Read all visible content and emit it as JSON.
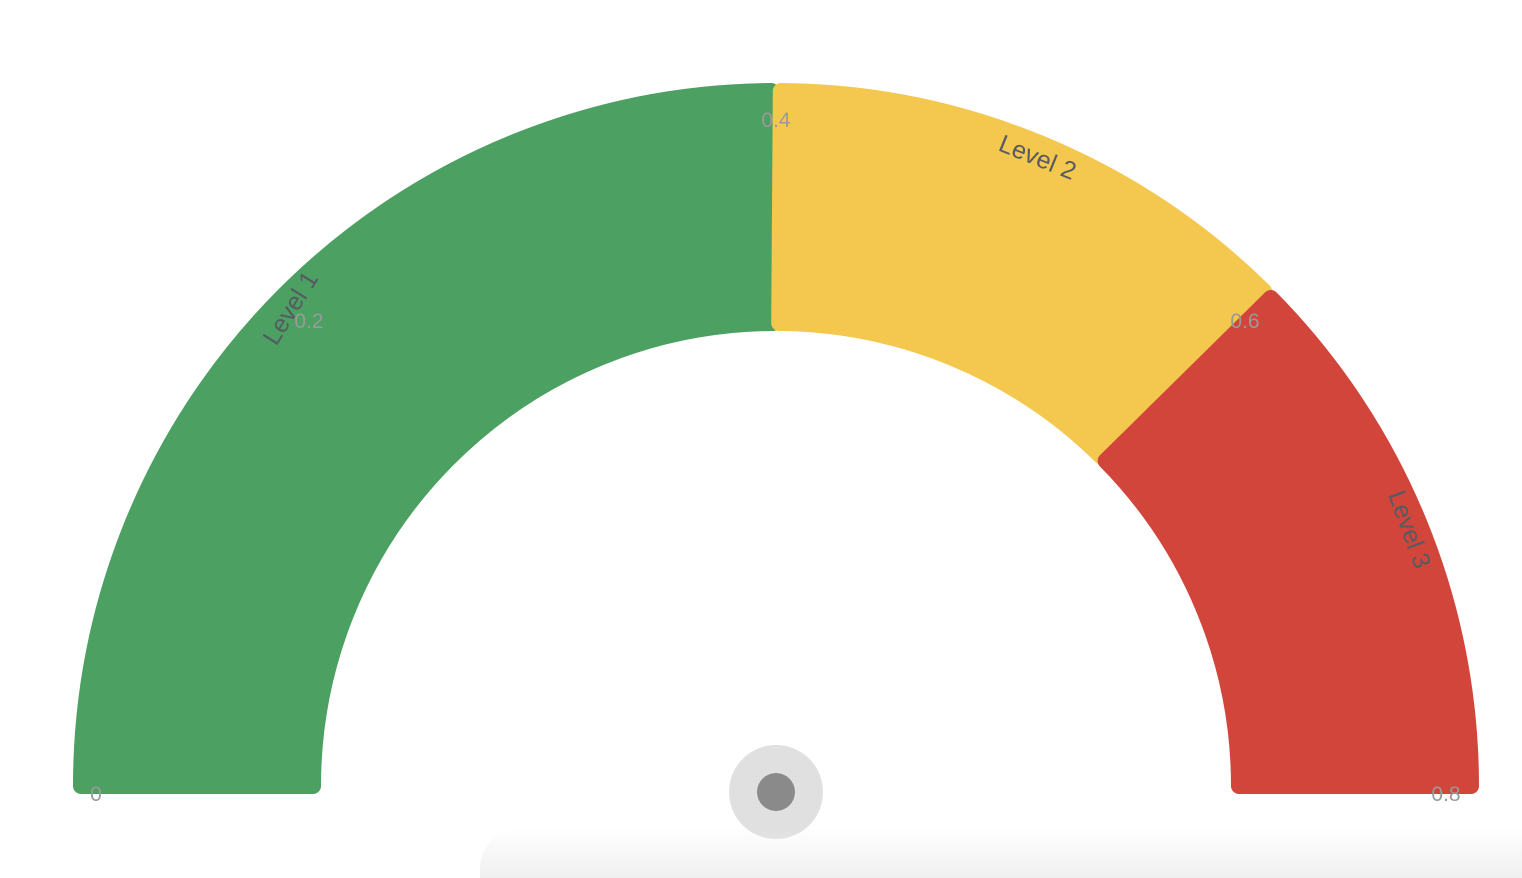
{
  "chart_data": {
    "type": "gauge",
    "min": 0,
    "max": 0.8,
    "ticks": [
      {
        "value": 0,
        "label": "0"
      },
      {
        "value": 0.2,
        "label": "0.2"
      },
      {
        "value": 0.4,
        "label": "0.4"
      },
      {
        "value": 0.6,
        "label": "0.6"
      },
      {
        "value": 0.8,
        "label": "0.8"
      }
    ],
    "bands": [
      {
        "name": "Level 1",
        "from": 0,
        "to": 0.4,
        "color": "#4ba062"
      },
      {
        "name": "Level 2",
        "from": 0.4,
        "to": 0.6,
        "color": "#f4c74f"
      },
      {
        "name": "Level 3",
        "from": 0.6,
        "to": 0.8,
        "color": "#d2453b"
      }
    ],
    "pointer": {
      "outer_color": "#e0e0e0",
      "inner_color": "#8a8a8a"
    }
  }
}
